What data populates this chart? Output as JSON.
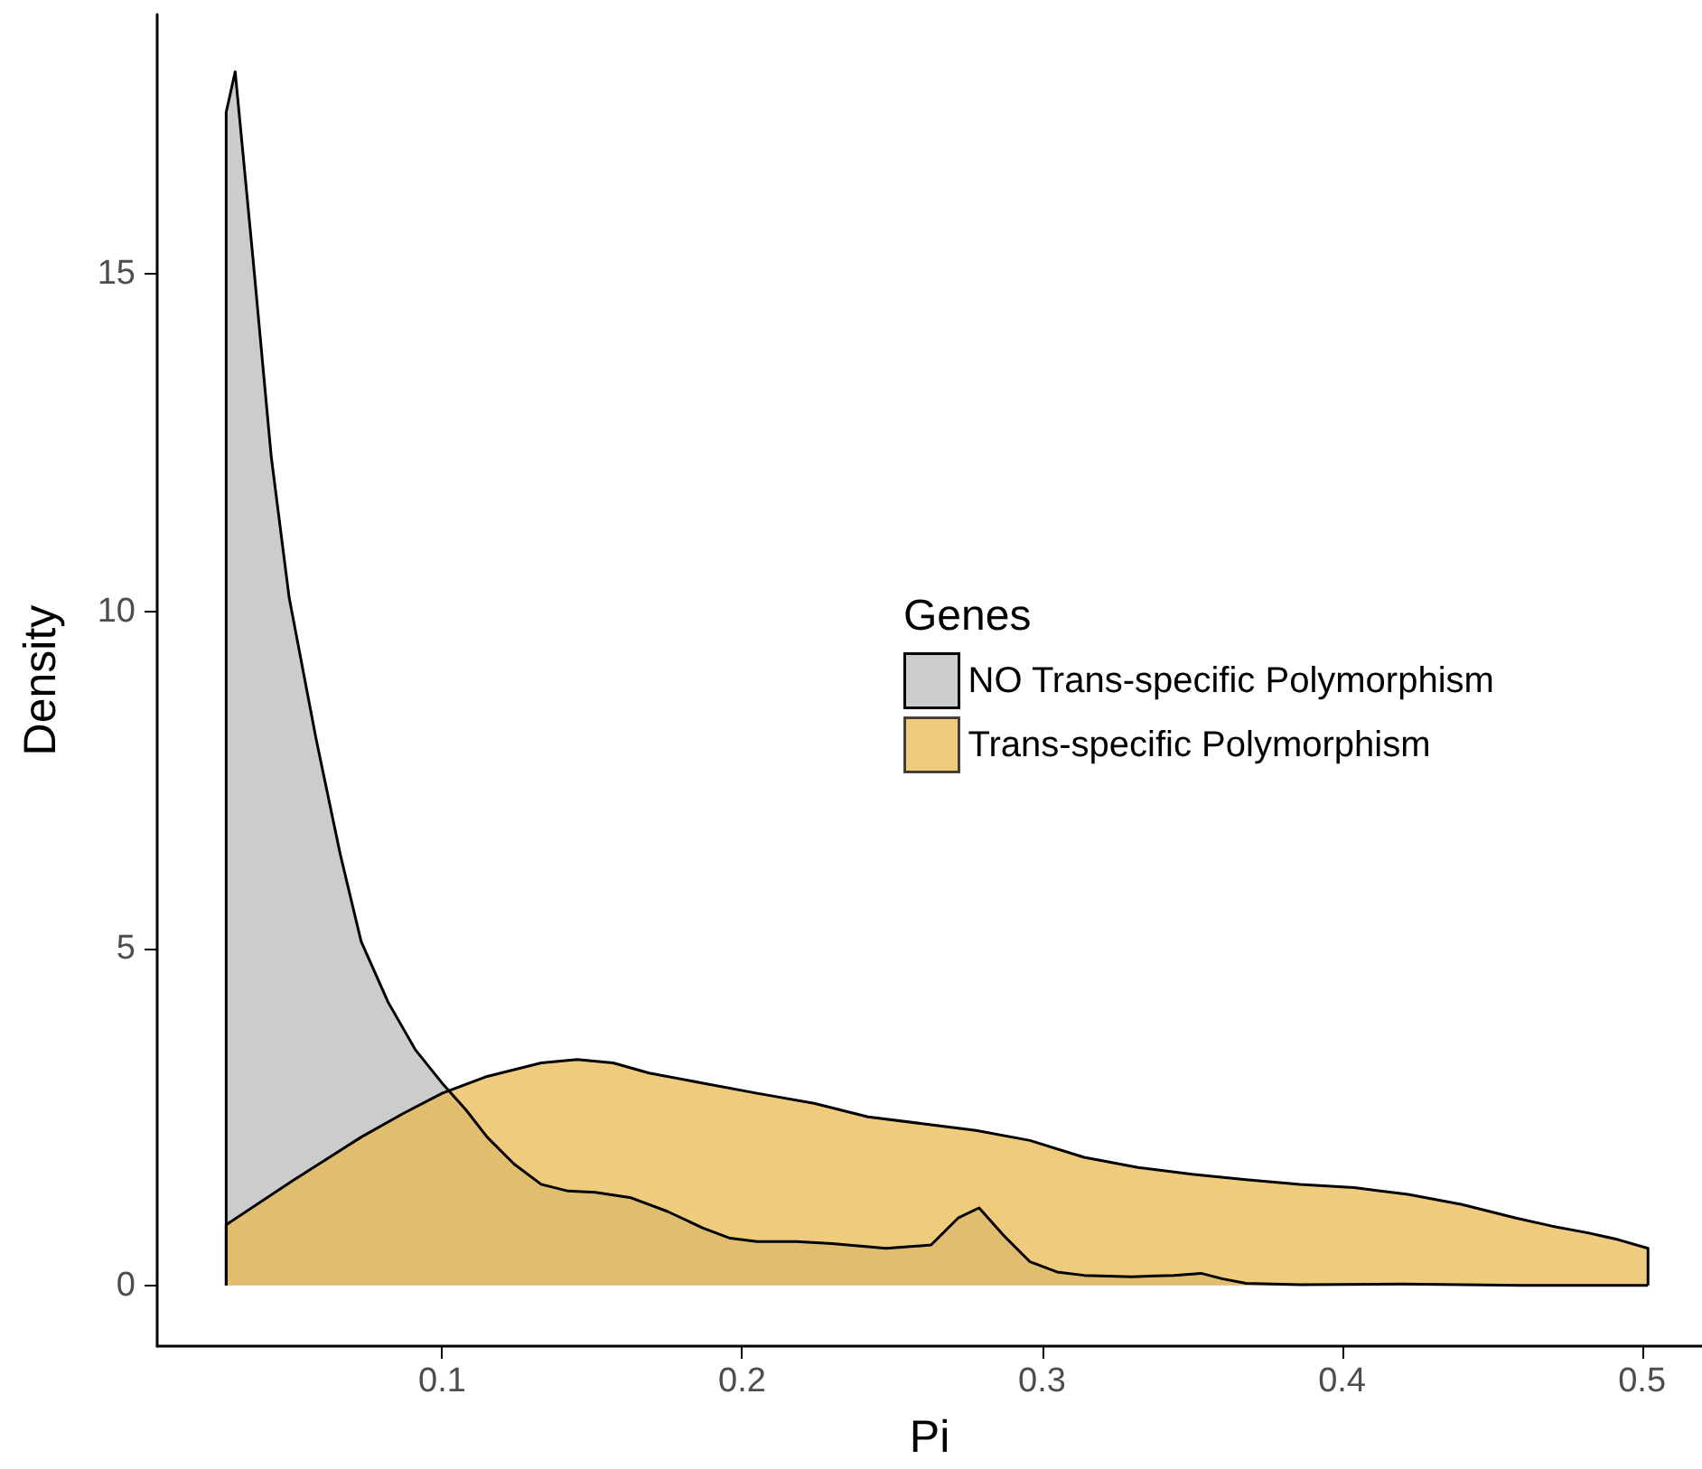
{
  "chart_data": {
    "type": "area",
    "xlabel": "Pi",
    "ylabel": "Density",
    "legend_title": "Genes",
    "legend": "right",
    "xlim": [
      0.005,
      0.52
    ],
    "ylim": [
      -0.9,
      18.85
    ],
    "xticks": [
      0.1,
      0.2,
      0.3,
      0.4,
      0.5
    ],
    "yticks": [
      0,
      5,
      10,
      15
    ],
    "grid": false,
    "series": [
      {
        "name": "NO Trans-specific Polymorphism",
        "color": "#cccccc",
        "x": [
          0.028,
          0.028,
          0.031,
          0.037,
          0.043,
          0.049,
          0.058,
          0.066,
          0.073,
          0.082,
          0.091,
          0.1,
          0.108,
          0.115,
          0.124,
          0.133,
          0.142,
          0.151,
          0.163,
          0.175,
          0.187,
          0.196,
          0.205,
          0.218,
          0.23,
          0.248,
          0.263,
          0.272,
          0.279,
          0.287,
          0.296,
          0.305,
          0.314,
          0.33,
          0.344,
          0.353,
          0.36,
          0.368,
          0.386,
          0.42,
          0.46,
          0.502
        ],
        "values": [
          0,
          17.4,
          18.0,
          15.2,
          12.3,
          10.2,
          8.1,
          6.4,
          5.1,
          4.2,
          3.5,
          3.0,
          2.6,
          2.2,
          1.8,
          1.5,
          1.4,
          1.38,
          1.3,
          1.1,
          0.85,
          0.7,
          0.65,
          0.65,
          0.62,
          0.55,
          0.6,
          1.0,
          1.15,
          0.75,
          0.35,
          0.2,
          0.15,
          0.13,
          0.15,
          0.18,
          0.1,
          0.03,
          0.01,
          0.02,
          0.0,
          0.0
        ]
      },
      {
        "name": "Trans-specific Polymorphism",
        "color": "#e9b94b",
        "x": [
          0.028,
          0.028,
          0.05,
          0.073,
          0.087,
          0.1,
          0.115,
          0.133,
          0.145,
          0.157,
          0.169,
          0.187,
          0.205,
          0.224,
          0.242,
          0.26,
          0.278,
          0.296,
          0.314,
          0.332,
          0.35,
          0.368,
          0.386,
          0.404,
          0.422,
          0.44,
          0.458,
          0.47,
          0.482,
          0.492,
          0.502,
          0.502
        ],
        "values": [
          0,
          0.9,
          1.55,
          2.2,
          2.55,
          2.85,
          3.1,
          3.3,
          3.35,
          3.3,
          3.15,
          3.0,
          2.85,
          2.7,
          2.5,
          2.4,
          2.3,
          2.15,
          1.9,
          1.75,
          1.65,
          1.57,
          1.5,
          1.45,
          1.35,
          1.2,
          1.0,
          0.88,
          0.78,
          0.68,
          0.55,
          0
        ]
      }
    ]
  }
}
